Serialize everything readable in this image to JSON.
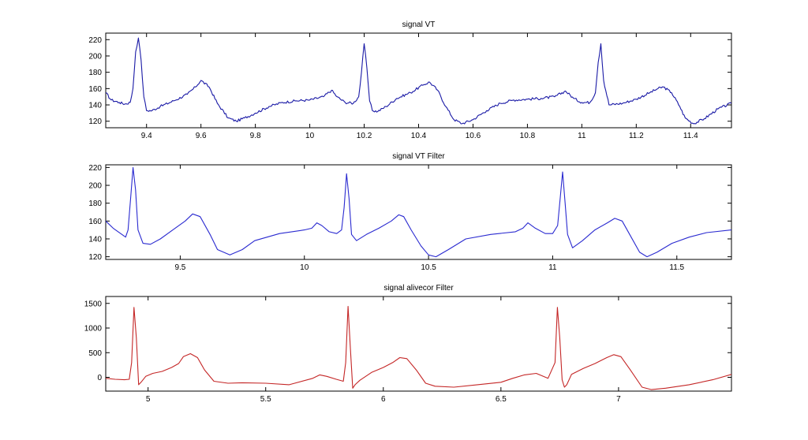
{
  "chart_data": [
    {
      "type": "line",
      "title": "signal VT",
      "xlabel": "",
      "ylabel": "",
      "xlim": [
        9.25,
        11.55
      ],
      "ylim": [
        112,
        228
      ],
      "xticks": [
        9.4,
        9.6,
        9.8,
        10,
        10.2,
        10.4,
        10.6,
        10.8,
        11,
        11.2,
        11.4
      ],
      "xtick_labels": [
        "9.4",
        "9.6",
        "9.8",
        "10",
        "10.2",
        "10.4",
        "10.6",
        "10.8",
        "11",
        "11.2",
        "11.4"
      ],
      "yticks": [
        120,
        140,
        160,
        180,
        200,
        220
      ],
      "ytick_labels": [
        "120",
        "140",
        "160",
        "180",
        "200",
        "220"
      ],
      "grid": false,
      "color": "#1a1aa6",
      "noise": 1.6,
      "series": [
        {
          "x": [
            9.25,
            9.27,
            9.3,
            9.32,
            9.34,
            9.35,
            9.36,
            9.37,
            9.38,
            9.39,
            9.4,
            9.42,
            9.45,
            9.5,
            9.55,
            9.58,
            9.6,
            9.63,
            9.66,
            9.7,
            9.73,
            9.76,
            9.8,
            9.85,
            9.9,
            9.95,
            10.0,
            10.05,
            10.08,
            10.1,
            10.13,
            10.16,
            10.18,
            10.19,
            10.2,
            10.21,
            10.22,
            10.23,
            10.25,
            10.28,
            10.32,
            10.37,
            10.42,
            10.44,
            10.47,
            10.5,
            10.53,
            10.56,
            10.6,
            10.65,
            10.7,
            10.75,
            10.8,
            10.85,
            10.9,
            10.94,
            10.97,
            11.0,
            11.03,
            11.05,
            11.06,
            11.07,
            11.08,
            11.1,
            11.15,
            11.2,
            11.25,
            11.28,
            11.3,
            11.33,
            11.36,
            11.38,
            11.41,
            11.45,
            11.5,
            11.55
          ],
          "y": [
            155,
            146,
            143,
            141,
            143,
            160,
            205,
            222,
            195,
            150,
            133,
            133,
            138,
            145,
            153,
            162,
            170,
            162,
            142,
            124,
            120,
            124,
            130,
            138,
            143,
            145,
            146,
            150,
            158,
            150,
            143,
            142,
            150,
            180,
            215,
            185,
            145,
            133,
            132,
            138,
            148,
            155,
            165,
            168,
            158,
            138,
            122,
            117,
            122,
            133,
            142,
            146,
            147,
            148,
            150,
            157,
            148,
            143,
            143,
            155,
            192,
            215,
            170,
            140,
            142,
            147,
            155,
            160,
            162,
            155,
            138,
            124,
            117,
            123,
            135,
            142
          ]
        }
      ]
    },
    {
      "type": "line",
      "title": "signal VT Filter",
      "xlabel": "",
      "ylabel": "",
      "xlim": [
        9.2,
        11.72
      ],
      "ylim": [
        117,
        223
      ],
      "xticks": [
        9.5,
        10,
        10.5,
        11,
        11.5
      ],
      "xtick_labels": [
        "9.5",
        "10",
        "10.5",
        "11",
        "11.5"
      ],
      "yticks": [
        120,
        140,
        160,
        180,
        200,
        220
      ],
      "ytick_labels": [
        "120",
        "140",
        "160",
        "180",
        "200",
        "220"
      ],
      "grid": false,
      "color": "#2a2ad0",
      "noise": 0,
      "series": [
        {
          "x": [
            9.2,
            9.23,
            9.26,
            9.28,
            9.29,
            9.3,
            9.31,
            9.32,
            9.33,
            9.35,
            9.38,
            9.42,
            9.47,
            9.52,
            9.55,
            9.58,
            9.62,
            9.65,
            9.7,
            9.75,
            9.8,
            9.9,
            10.0,
            10.03,
            10.05,
            10.07,
            10.1,
            10.13,
            10.15,
            10.16,
            10.17,
            10.18,
            10.19,
            10.21,
            10.25,
            10.3,
            10.35,
            10.38,
            10.4,
            10.43,
            10.47,
            10.5,
            10.53,
            10.58,
            10.65,
            10.75,
            10.85,
            10.88,
            10.9,
            10.93,
            10.97,
            11.0,
            11.02,
            11.03,
            11.04,
            11.05,
            11.06,
            11.08,
            11.12,
            11.17,
            11.22,
            11.25,
            11.28,
            11.31,
            11.35,
            11.38,
            11.42,
            11.48,
            11.55,
            11.62,
            11.72
          ],
          "y": [
            160,
            152,
            146,
            142,
            150,
            185,
            220,
            195,
            150,
            135,
            134,
            140,
            150,
            160,
            168,
            165,
            145,
            128,
            122,
            128,
            138,
            146,
            150,
            152,
            158,
            155,
            148,
            146,
            150,
            175,
            213,
            185,
            145,
            138,
            145,
            152,
            160,
            167,
            165,
            150,
            132,
            122,
            120,
            128,
            140,
            145,
            148,
            152,
            158,
            152,
            146,
            146,
            155,
            185,
            215,
            180,
            145,
            130,
            138,
            150,
            158,
            163,
            160,
            145,
            125,
            120,
            125,
            135,
            142,
            147,
            150
          ]
        }
      ]
    },
    {
      "type": "line",
      "title": "signal alivecor Filter",
      "xlabel": "",
      "ylabel": "",
      "xlim": [
        4.82,
        7.48
      ],
      "ylim": [
        -280,
        1640
      ],
      "xticks": [
        5,
        5.5,
        6,
        6.5,
        7
      ],
      "xtick_labels": [
        "5",
        "5.5",
        "6",
        "6.5",
        "7"
      ],
      "yticks": [
        0,
        500,
        1000,
        1500
      ],
      "ytick_labels": [
        "0",
        "500",
        "1000",
        "1500"
      ],
      "grid": false,
      "color": "#c42626",
      "noise": 0,
      "series": [
        {
          "x": [
            4.82,
            4.86,
            4.9,
            4.92,
            4.93,
            4.94,
            4.95,
            4.96,
            4.97,
            4.99,
            5.02,
            5.06,
            5.1,
            5.13,
            5.15,
            5.18,
            5.21,
            5.24,
            5.28,
            5.34,
            5.4,
            5.5,
            5.6,
            5.7,
            5.73,
            5.76,
            5.8,
            5.83,
            5.84,
            5.85,
            5.86,
            5.87,
            5.88,
            5.9,
            5.95,
            6.0,
            6.04,
            6.07,
            6.1,
            6.14,
            6.18,
            6.22,
            6.3,
            6.4,
            6.5,
            6.55,
            6.6,
            6.65,
            6.7,
            6.73,
            6.74,
            6.75,
            6.76,
            6.77,
            6.78,
            6.8,
            6.85,
            6.9,
            6.95,
            6.98,
            7.01,
            7.05,
            7.1,
            7.14,
            7.2,
            7.3,
            7.4,
            7.48
          ],
          "y": [
            -20,
            -40,
            -50,
            -40,
            300,
            1420,
            800,
            -150,
            -100,
            20,
            80,
            120,
            200,
            280,
            420,
            480,
            400,
            150,
            -80,
            -120,
            -110,
            -120,
            -150,
            -20,
            50,
            20,
            -40,
            -80,
            300,
            1440,
            600,
            -220,
            -150,
            -60,
            100,
            200,
            300,
            400,
            380,
            150,
            -120,
            -180,
            -200,
            -150,
            -100,
            -20,
            50,
            80,
            -20,
            300,
            1420,
            800,
            -50,
            -200,
            -150,
            60,
            180,
            280,
            400,
            460,
            420,
            150,
            -200,
            -250,
            -220,
            -150,
            -50,
            60
          ]
        }
      ]
    }
  ]
}
